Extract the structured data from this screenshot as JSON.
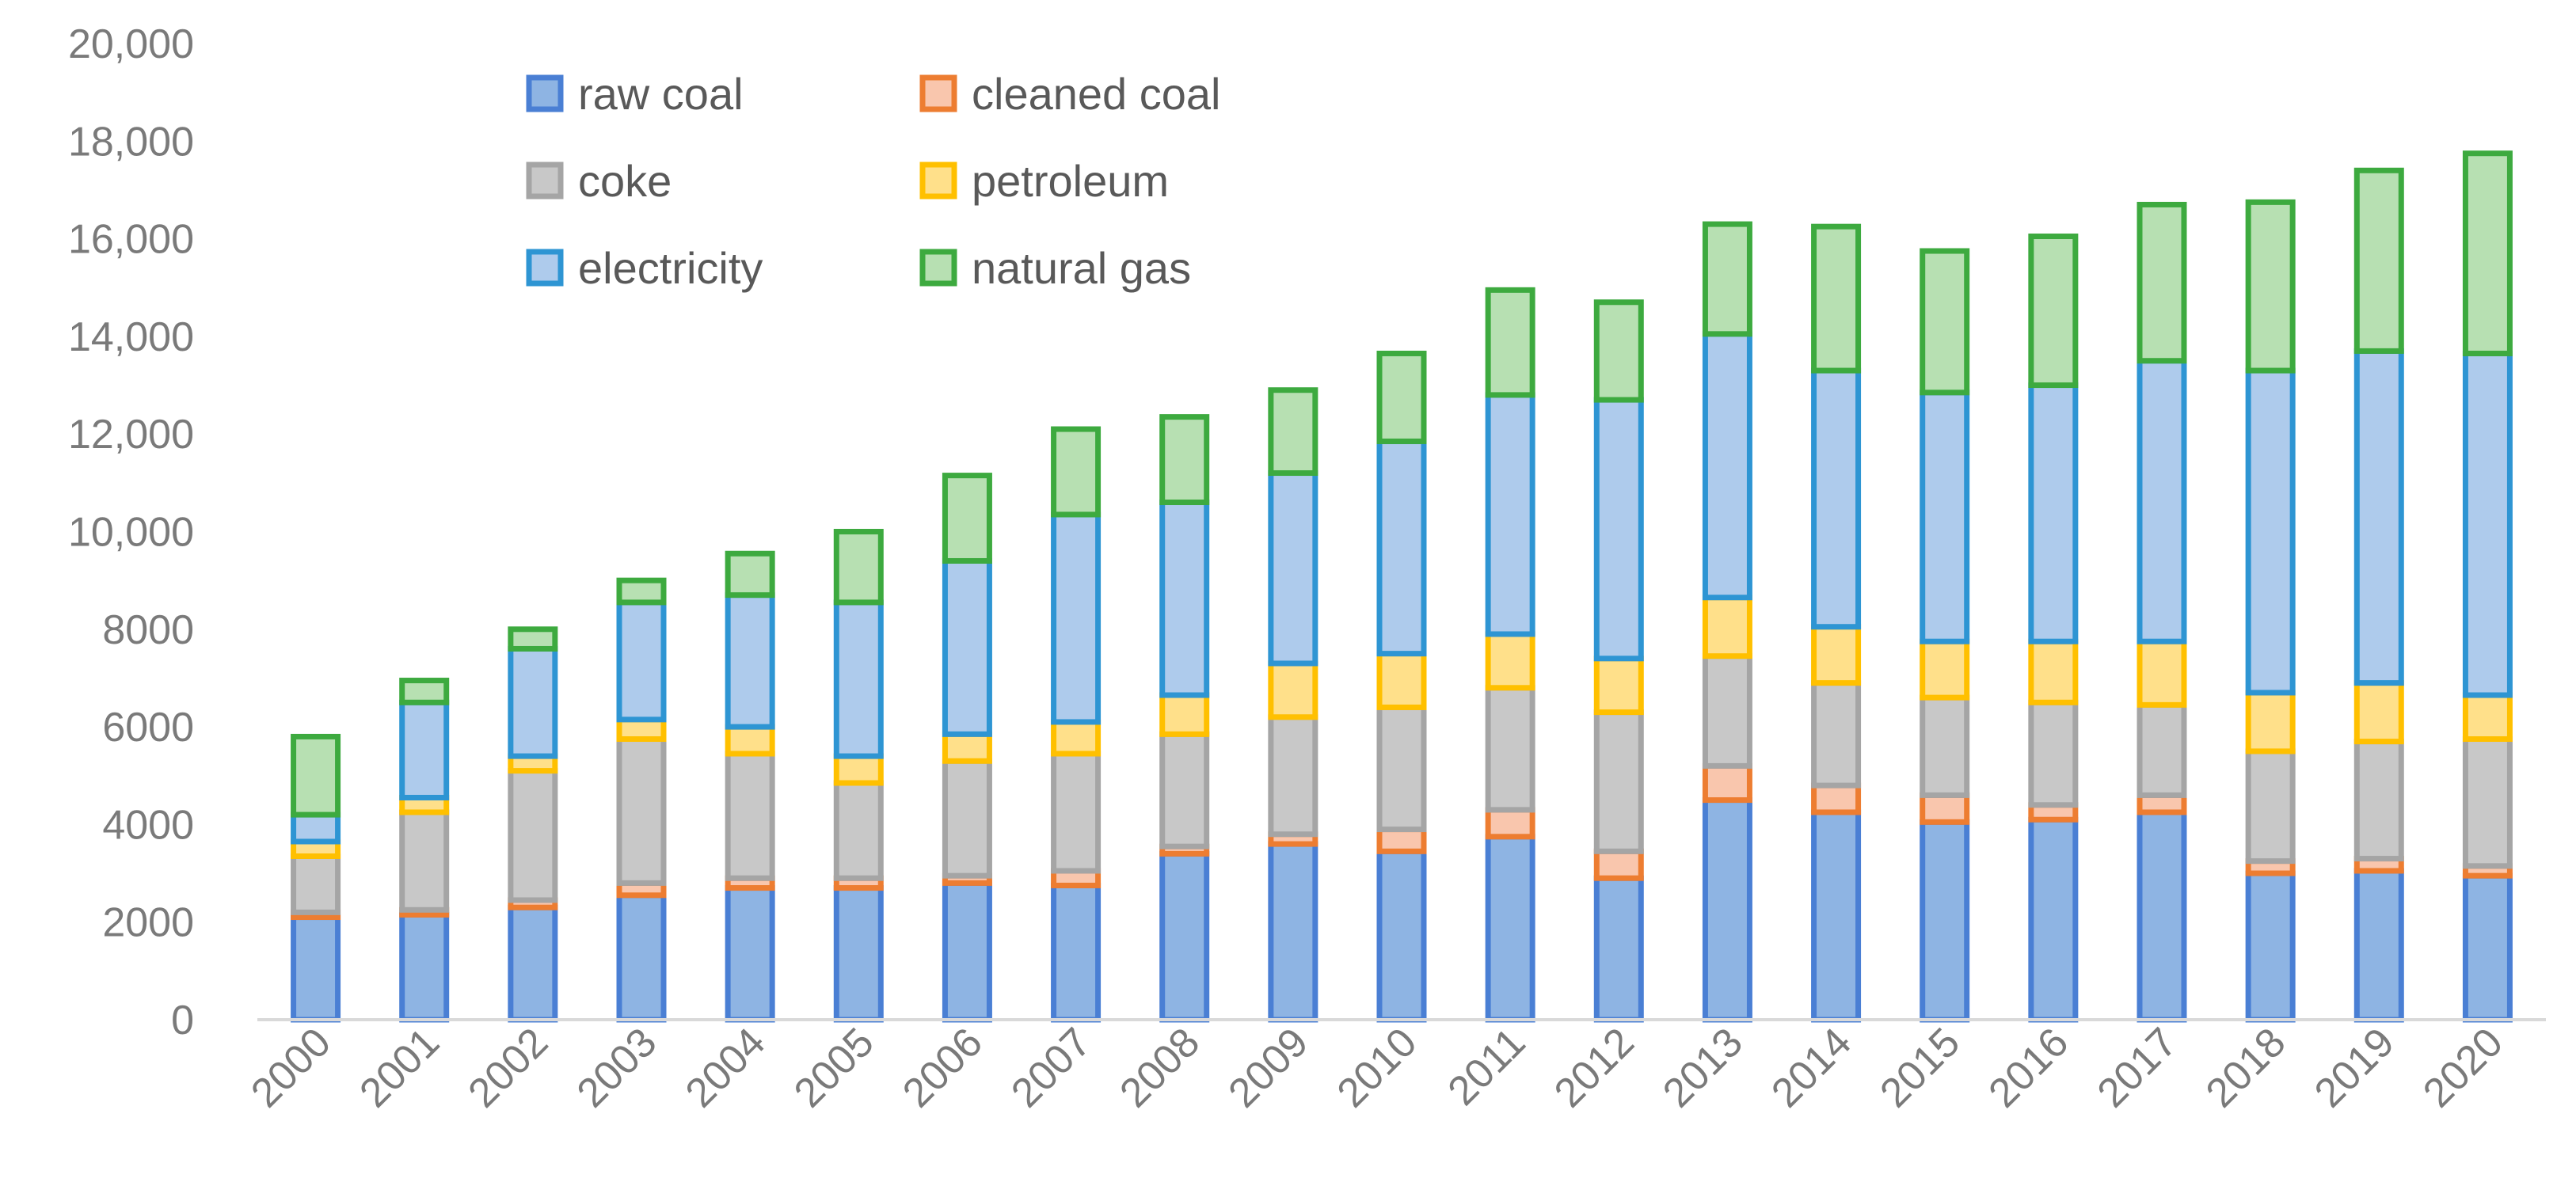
{
  "chart_data": {
    "type": "bar",
    "stacked": true,
    "title": "",
    "xlabel": "",
    "ylabel": "",
    "ylim": [
      0,
      20000
    ],
    "yticks": [
      {
        "value": 0,
        "label": "0"
      },
      {
        "value": 2000,
        "label": "2000"
      },
      {
        "value": 4000,
        "label": "4000"
      },
      {
        "value": 6000,
        "label": "6000"
      },
      {
        "value": 8000,
        "label": "8000"
      },
      {
        "value": 10000,
        "label": "10,000"
      },
      {
        "value": 12000,
        "label": "12,000"
      },
      {
        "value": 14000,
        "label": "14,000"
      },
      {
        "value": 16000,
        "label": "16,000"
      },
      {
        "value": 18000,
        "label": "18,000"
      },
      {
        "value": 20000,
        "label": "20,000"
      }
    ],
    "grid": false,
    "legend_position": "top-left",
    "categories": [
      "2000",
      "2001",
      "2002",
      "2003",
      "2004",
      "2005",
      "2006",
      "2007",
      "2008",
      "2009",
      "2010",
      "2011",
      "2012",
      "2013",
      "2014",
      "2015",
      "2016",
      "2017",
      "2018",
      "2019",
      "2020"
    ],
    "series": [
      {
        "name": "raw coal",
        "fill": "#8eb4e3",
        "stroke": "#4a7fd4",
        "values": [
          2100,
          2150,
          2300,
          2550,
          2700,
          2700,
          2800,
          2750,
          3400,
          3600,
          3450,
          3750,
          2900,
          4500,
          4250,
          4050,
          4100,
          4250,
          3000,
          3050,
          2950
        ]
      },
      {
        "name": "cleaned coal",
        "fill": "#f9c6ad",
        "stroke": "#ed7d31",
        "values": [
          100,
          100,
          150,
          250,
          200,
          200,
          150,
          300,
          150,
          200,
          450,
          550,
          550,
          700,
          550,
          550,
          300,
          350,
          250,
          250,
          200
        ]
      },
      {
        "name": "coke",
        "fill": "#c8c8c8",
        "stroke": "#a5a5a5",
        "values": [
          1150,
          2000,
          2650,
          2950,
          2550,
          1950,
          2350,
          2400,
          2300,
          2400,
          2500,
          2500,
          2850,
          2250,
          2100,
          2000,
          2100,
          1850,
          2250,
          2400,
          2600
        ]
      },
      {
        "name": "petroleum",
        "fill": "#ffe08a",
        "stroke": "#ffc000",
        "values": [
          300,
          300,
          300,
          400,
          550,
          550,
          550,
          650,
          800,
          1100,
          1100,
          1100,
          1100,
          1200,
          1150,
          1150,
          1250,
          1300,
          1200,
          1200,
          900
        ]
      },
      {
        "name": "electricity",
        "fill": "#aecbec",
        "stroke": "#2e95d3",
        "values": [
          550,
          1950,
          2200,
          2400,
          2700,
          3150,
          3550,
          4250,
          3950,
          3900,
          4350,
          4900,
          5300,
          5400,
          5250,
          5100,
          5250,
          5750,
          6600,
          6800,
          7000
        ]
      },
      {
        "name": "natural gas",
        "fill": "#b7e0b2",
        "stroke": "#3daa3f",
        "values": [
          1600,
          450,
          400,
          450,
          850,
          1450,
          1750,
          1750,
          1750,
          1700,
          1800,
          2150,
          2000,
          2250,
          2950,
          2900,
          3050,
          3200,
          3450,
          3700,
          4100
        ]
      }
    ]
  }
}
